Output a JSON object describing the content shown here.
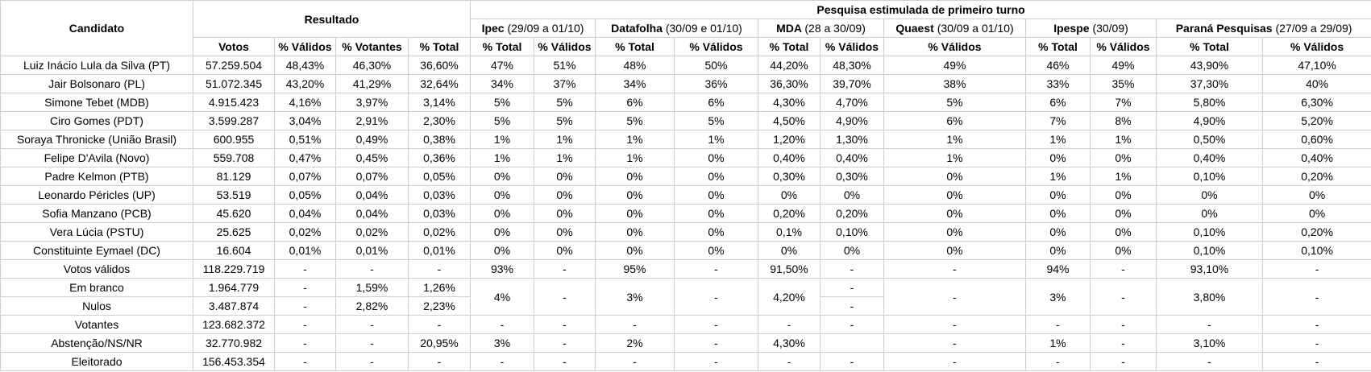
{
  "header": {
    "candidate_label": "Candidato",
    "result_label": "Resultado",
    "polls_label": "Pesquisa estimulada de primeiro turno",
    "result_columns": [
      "Votos",
      "% Válidos",
      "% Votantes",
      "% Total"
    ],
    "polls": [
      {
        "name": "Ipec",
        "dates": "(29/09 a 01/10)",
        "columns": [
          "% Total",
          "% Válidos"
        ]
      },
      {
        "name": "Datafolha",
        "dates": "(30/09 e 01/10)",
        "columns": [
          "% Total",
          "% Válidos"
        ]
      },
      {
        "name": "MDA",
        "dates": "(28 a 30/09)",
        "columns": [
          "% Total",
          "% Válidos"
        ]
      },
      {
        "name": "Quaest",
        "dates": "(30/09 a 01/10)",
        "columns": [
          "% Válidos"
        ]
      },
      {
        "name": "Ipespe",
        "dates": "(30/09)",
        "columns": [
          "% Total",
          "% Válidos"
        ]
      },
      {
        "name": "Paraná Pesquisas",
        "dates": "(27/09 a 29/09)",
        "columns": [
          "% Total",
          "% Válidos"
        ]
      }
    ]
  },
  "table": {
    "rows": [
      [
        "Luiz Inácio Lula da Silva (PT)",
        "57.259.504",
        "48,43%",
        "46,30%",
        "36,60%",
        "47%",
        "51%",
        "48%",
        "50%",
        "44,20%",
        "48,30%",
        "49%",
        "46%",
        "49%",
        "43,90%",
        "47,10%"
      ],
      [
        "Jair Bolsonaro (PL)",
        "51.072.345",
        "43,20%",
        "41,29%",
        "32,64%",
        "34%",
        "37%",
        "34%",
        "36%",
        "36,30%",
        "39,70%",
        "38%",
        "33%",
        "35%",
        "37,30%",
        "40%"
      ],
      [
        "Simone Tebet (MDB)",
        "4.915.423",
        "4,16%",
        "3,97%",
        "3,14%",
        "5%",
        "5%",
        "6%",
        "6%",
        "4,30%",
        "4,70%",
        "5%",
        "6%",
        "7%",
        "5,80%",
        "6,30%"
      ],
      [
        "Ciro Gomes (PDT)",
        "3.599.287",
        "3,04%",
        "2,91%",
        "2,30%",
        "5%",
        "5%",
        "5%",
        "5%",
        "4,50%",
        "4,90%",
        "6%",
        "7%",
        "8%",
        "4,90%",
        "5,20%"
      ],
      [
        "Soraya Thronicke (União Brasil)",
        "600.955",
        "0,51%",
        "0,49%",
        "0,38%",
        "1%",
        "1%",
        "1%",
        "1%",
        "1,20%",
        "1,30%",
        "1%",
        "1%",
        "1%",
        "0,50%",
        "0,60%"
      ],
      [
        "Felipe D'Avila (Novo)",
        "559.708",
        "0,47%",
        "0,45%",
        "0,36%",
        "1%",
        "1%",
        "1%",
        "0%",
        "0,40%",
        "0,40%",
        "1%",
        "0%",
        "0%",
        "0,40%",
        "0,40%"
      ],
      [
        "Padre Kelmon (PTB)",
        "81.129",
        "0,07%",
        "0,07%",
        "0,05%",
        "0%",
        "0%",
        "0%",
        "0%",
        "0,30%",
        "0,30%",
        "0%",
        "1%",
        "1%",
        "0,10%",
        "0,20%"
      ],
      [
        "Leonardo Péricles (UP)",
        "53.519",
        "0,05%",
        "0,04%",
        "0,03%",
        "0%",
        "0%",
        "0%",
        "0%",
        "0%",
        "0%",
        "0%",
        "0%",
        "0%",
        "0%",
        "0%"
      ],
      [
        "Sofia Manzano (PCB)",
        "45.620",
        "0,04%",
        "0,04%",
        "0,03%",
        "0%",
        "0%",
        "0%",
        "0%",
        "0,20%",
        "0,20%",
        "0%",
        "0%",
        "0%",
        "0%",
        "0%"
      ],
      [
        "Vera Lúcia (PSTU)",
        "25.625",
        "0,02%",
        "0,02%",
        "0,02%",
        "0%",
        "0%",
        "0%",
        "0%",
        "0,1%",
        "0,10%",
        "0%",
        "0%",
        "0%",
        "0,10%",
        "0,20%"
      ],
      [
        "Constituinte Eymael (DC)",
        "16.604",
        "0,01%",
        "0,01%",
        "0,01%",
        "0%",
        "0%",
        "0%",
        "0%",
        "0%",
        "0%",
        "0%",
        "0%",
        "0%",
        "0,10%",
        "0,10%"
      ],
      [
        "Votos válidos",
        "118.229.719",
        "-",
        "-",
        "-",
        "93%",
        "-",
        "95%",
        "-",
        "91,50%",
        "-",
        "-",
        "94%",
        "-",
        "93,10%",
        "-"
      ],
      [
        "Em branco",
        "1.964.779",
        "-",
        "1,59%",
        "1,26%",
        "4%",
        "-",
        "3%",
        "-",
        "4,20%",
        "-",
        "-",
        "3%",
        "-",
        "3,80%",
        "-"
      ],
      [
        "Nulos",
        "3.487.874",
        "-",
        "2,82%",
        "2,23%",
        "-"
      ],
      [
        "Votantes",
        "123.682.372",
        "-",
        "-",
        "-",
        "-",
        "-",
        "-",
        "-",
        "-",
        "-",
        "-",
        "-",
        "-",
        "-",
        "-"
      ],
      [
        "Abstenção/NS/NR",
        "32.770.982",
        "-",
        "-",
        "20,95%",
        "3%",
        "-",
        "2%",
        "-",
        "4,30%",
        null,
        "-",
        "1%",
        "-",
        "3,10%",
        "-"
      ],
      [
        "Eleitorado",
        "156.453.354",
        "-",
        "-",
        "-",
        "-",
        "-",
        "-",
        "-",
        "-",
        "-",
        "-",
        "-",
        "-",
        "-",
        "-"
      ]
    ]
  }
}
